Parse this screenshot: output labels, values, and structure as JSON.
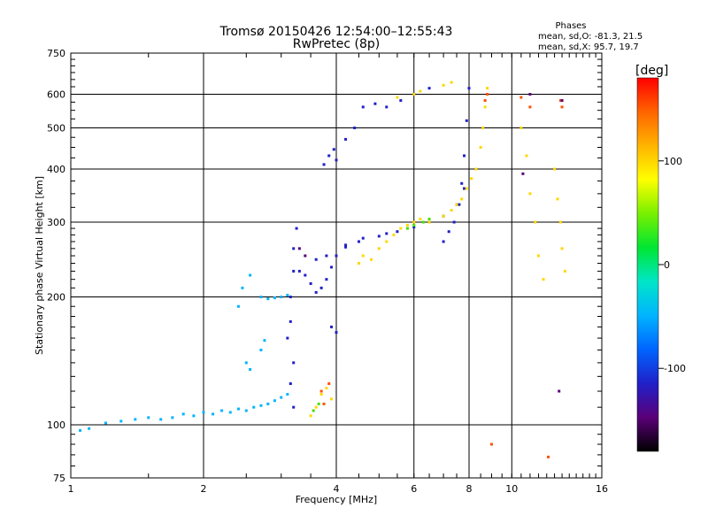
{
  "chart_data": {
    "type": "scatter",
    "title": "Tromsø 20150426 12:54:00–12:55:43",
    "subtitle": "RwPretec (8p)",
    "xlabel": "Frequency [MHz]",
    "ylabel": "Stationary phase Virtual Height [km]",
    "x_scale": "log",
    "y_scale": "log",
    "xlim": [
      1,
      16
    ],
    "ylim": [
      75,
      750
    ],
    "x_ticks": [
      "1",
      "2",
      "4",
      "6",
      "8",
      "10",
      "16"
    ],
    "y_ticks": [
      "75",
      "100",
      "200",
      "300",
      "400",
      "500",
      "600",
      "750"
    ],
    "grid": true,
    "phases_box": {
      "heading": "Phases",
      "line_o": "mean, sd,O:  -81.3, 21.5",
      "line_x": "mean, sd,X:  95.7, 19.7"
    },
    "colorbar": {
      "unit": "[deg]",
      "range": [
        -180,
        180
      ],
      "ticks": [
        "100",
        "0",
        "-100"
      ],
      "colors": [
        "#000000",
        "#5a0078",
        "#2020c8",
        "#0064ff",
        "#00b4ff",
        "#00e6c8",
        "#00e632",
        "#78f000",
        "#ffff00",
        "#ffb400",
        "#ff6400",
        "#ff0000"
      ]
    },
    "series": [
      {
        "color": "#00b4ff",
        "phase": -70,
        "points": [
          [
            1.05,
            97
          ],
          [
            1.1,
            98
          ],
          [
            1.2,
            101
          ],
          [
            1.3,
            102
          ],
          [
            1.4,
            103
          ],
          [
            1.5,
            104
          ],
          [
            1.6,
            103
          ],
          [
            1.7,
            104
          ],
          [
            1.8,
            106
          ],
          [
            1.9,
            105
          ],
          [
            2.0,
            107
          ],
          [
            2.1,
            106
          ],
          [
            2.2,
            108
          ],
          [
            2.3,
            107
          ],
          [
            2.4,
            109
          ],
          [
            2.5,
            108
          ],
          [
            2.6,
            110
          ],
          [
            2.7,
            111
          ],
          [
            2.8,
            112
          ],
          [
            2.9,
            114
          ],
          [
            3.0,
            116
          ],
          [
            3.1,
            118
          ],
          [
            2.5,
            140
          ],
          [
            2.55,
            135
          ],
          [
            2.7,
            150
          ],
          [
            2.75,
            158
          ],
          [
            2.4,
            190
          ],
          [
            2.45,
            210
          ],
          [
            2.55,
            225
          ],
          [
            2.7,
            200
          ],
          [
            2.8,
            198
          ],
          [
            2.9,
            199
          ],
          [
            3.0,
            200
          ],
          [
            3.1,
            202
          ]
        ]
      },
      {
        "color": "#2020c8",
        "phase": -110,
        "points": [
          [
            3.1,
            160
          ],
          [
            3.15,
            175
          ],
          [
            3.15,
            200
          ],
          [
            3.2,
            230
          ],
          [
            3.2,
            260
          ],
          [
            3.25,
            290
          ],
          [
            3.15,
            125
          ],
          [
            3.2,
            140
          ],
          [
            3.2,
            110
          ],
          [
            3.3,
            230
          ],
          [
            3.4,
            225
          ],
          [
            3.5,
            215
          ],
          [
            3.6,
            205
          ],
          [
            3.7,
            210
          ],
          [
            3.8,
            220
          ],
          [
            3.9,
            235
          ],
          [
            4.0,
            250
          ],
          [
            4.2,
            262
          ],
          [
            4.5,
            270
          ],
          [
            5.0,
            278
          ],
          [
            5.5,
            285
          ],
          [
            6.0,
            292
          ],
          [
            6.5,
            300
          ],
          [
            7.0,
            310
          ],
          [
            7.5,
            330
          ],
          [
            7.7,
            370
          ],
          [
            7.8,
            430
          ],
          [
            7.9,
            520
          ],
          [
            8.0,
            620
          ],
          [
            3.6,
            245
          ],
          [
            3.8,
            250
          ],
          [
            4.2,
            265
          ],
          [
            4.6,
            275
          ],
          [
            5.2,
            282
          ],
          [
            4.0,
            420
          ],
          [
            4.2,
            470
          ],
          [
            4.4,
            500
          ],
          [
            4.6,
            560
          ],
          [
            4.9,
            570
          ],
          [
            5.2,
            560
          ],
          [
            5.6,
            580
          ],
          [
            6.0,
            600
          ],
          [
            6.5,
            620
          ],
          [
            3.75,
            410
          ],
          [
            3.85,
            430
          ],
          [
            3.95,
            445
          ],
          [
            3.9,
            170
          ],
          [
            4.0,
            165
          ],
          [
            7.0,
            270
          ],
          [
            7.2,
            285
          ],
          [
            7.4,
            300
          ],
          [
            7.6,
            330
          ],
          [
            7.8,
            360
          ]
        ]
      },
      {
        "color": "#ffd700",
        "phase": 100,
        "points": [
          [
            3.6,
            110
          ],
          [
            3.7,
            118
          ],
          [
            3.8,
            122
          ],
          [
            3.9,
            115
          ],
          [
            3.5,
            105
          ],
          [
            4.5,
            240
          ],
          [
            4.6,
            250
          ],
          [
            4.8,
            245
          ],
          [
            5.0,
            260
          ],
          [
            5.2,
            270
          ],
          [
            5.4,
            280
          ],
          [
            5.6,
            290
          ],
          [
            5.8,
            295
          ],
          [
            6.0,
            300
          ],
          [
            6.2,
            305
          ],
          [
            6.5,
            300
          ],
          [
            7.0,
            310
          ],
          [
            7.3,
            320
          ],
          [
            7.5,
            330
          ],
          [
            7.7,
            340
          ],
          [
            7.9,
            360
          ],
          [
            8.1,
            380
          ],
          [
            8.3,
            400
          ],
          [
            8.5,
            450
          ],
          [
            8.6,
            500
          ],
          [
            8.7,
            560
          ],
          [
            8.8,
            620
          ],
          [
            5.5,
            590
          ],
          [
            6.0,
            600
          ],
          [
            6.2,
            610
          ],
          [
            7.0,
            630
          ],
          [
            7.3,
            640
          ],
          [
            10.5,
            500
          ],
          [
            10.8,
            430
          ],
          [
            11.0,
            350
          ],
          [
            11.3,
            300
          ],
          [
            11.5,
            250
          ],
          [
            11.8,
            220
          ],
          [
            12.5,
            400
          ],
          [
            12.7,
            340
          ],
          [
            12.9,
            300
          ],
          [
            13.0,
            260
          ],
          [
            13.2,
            230
          ]
        ]
      },
      {
        "color": "#44e000",
        "phase": 20,
        "points": [
          [
            3.55,
            108
          ],
          [
            3.65,
            112
          ],
          [
            5.8,
            290
          ],
          [
            6.0,
            295
          ],
          [
            6.3,
            300
          ],
          [
            6.5,
            305
          ]
        ]
      },
      {
        "color": "#ff5000",
        "phase": 160,
        "points": [
          [
            3.7,
            120
          ],
          [
            3.75,
            112
          ],
          [
            3.85,
            125
          ],
          [
            8.7,
            580
          ],
          [
            8.8,
            600
          ],
          [
            10.5,
            590
          ],
          [
            11.0,
            560
          ],
          [
            12.9,
            580
          ],
          [
            13.0,
            560
          ],
          [
            12.1,
            84
          ],
          [
            9.0,
            90
          ]
        ]
      },
      {
        "color": "#5a0078",
        "phase": -150,
        "points": [
          [
            3.3,
            260
          ],
          [
            3.4,
            250
          ],
          [
            10.6,
            390
          ],
          [
            11.0,
            600
          ],
          [
            12.8,
            120
          ],
          [
            13.0,
            580
          ]
        ]
      }
    ]
  }
}
